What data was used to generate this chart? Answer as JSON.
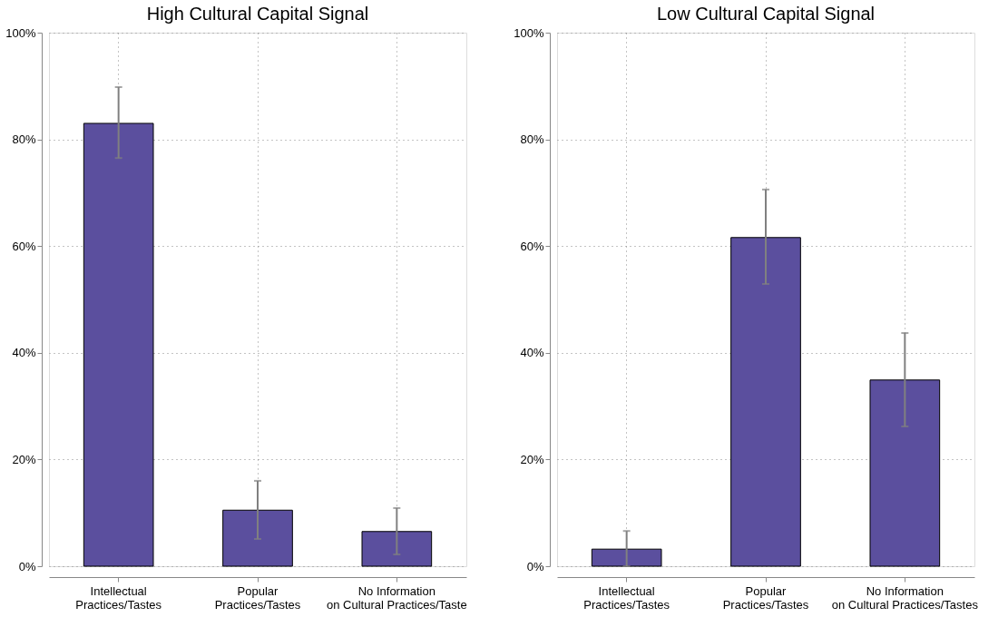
{
  "chart_data": [
    {
      "type": "bar",
      "title": "High Cultural Capital Signal",
      "categories": [
        "Intellectual\nPractices/Tastes",
        "Popular\nPractices/Tastes",
        "No Information\non Cultural Practices/Taste"
      ],
      "values": [
        83.0,
        10.5,
        6.5
      ],
      "errors": [
        [
          76.5,
          89.8
        ],
        [
          5.1,
          16.0
        ],
        [
          2.2,
          10.9
        ]
      ],
      "color": "#5b4f9e",
      "ylim": [
        0,
        100
      ],
      "yticks": [
        {
          "value": 0,
          "label": "0%"
        },
        {
          "value": 20,
          "label": "20%"
        },
        {
          "value": 40,
          "label": "40%"
        },
        {
          "value": 60,
          "label": "60%"
        },
        {
          "value": 80,
          "label": "80%"
        },
        {
          "value": 100,
          "label": "100%"
        }
      ],
      "grid": true
    },
    {
      "type": "bar",
      "title": "Low Cultural Capital Signal",
      "categories": [
        "Intellectual\nPractices/Tastes",
        "Popular\nPractices/Tastes",
        "No Information\non Cultural Practices/Tastes"
      ],
      "values": [
        3.2,
        61.6,
        34.9
      ],
      "errors": [
        [
          0,
          6.6
        ],
        [
          52.9,
          70.6
        ],
        [
          26.2,
          43.7
        ]
      ],
      "color": "#5b4f9e",
      "ylim": [
        0,
        100
      ],
      "yticks": [
        {
          "value": 0,
          "label": "0%"
        },
        {
          "value": 20,
          "label": "20%"
        },
        {
          "value": 40,
          "label": "40%"
        },
        {
          "value": 60,
          "label": "60%"
        },
        {
          "value": 80,
          "label": "80%"
        },
        {
          "value": 100,
          "label": "100%"
        }
      ],
      "grid": true
    }
  ]
}
